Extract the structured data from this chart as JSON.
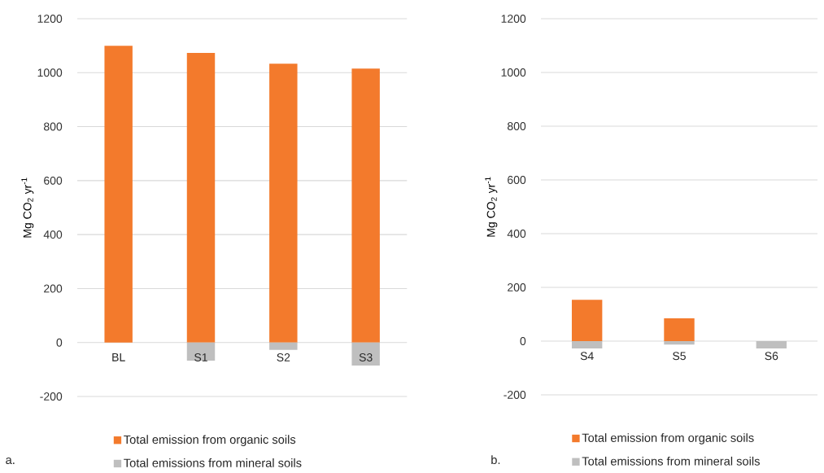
{
  "chart_data": [
    {
      "type": "bar",
      "stacked": true,
      "categories": [
        "BL",
        "S1",
        "S2",
        "S3"
      ],
      "ylabel": "Mg CO$_{2}$ yr$^{-1}$",
      "ylim": [
        -200,
        1200
      ],
      "yticks": [
        -200,
        0,
        200,
        400,
        600,
        800,
        1000,
        1200
      ],
      "grid": "y",
      "legend": "bottom",
      "annotations": [
        "a."
      ],
      "series": [
        {
          "name": "Total emission from organic soils",
          "color": "#f37a2c",
          "values": [
            1100,
            1073,
            1033,
            1015
          ]
        },
        {
          "name": "Total emissions from mineral soils",
          "color": "#bfbfbf",
          "values": [
            0,
            -67,
            -27,
            -85
          ]
        }
      ]
    },
    {
      "type": "bar",
      "stacked": true,
      "categories": [
        "S4",
        "S5",
        "S6"
      ],
      "ylabel": "Mg CO$_{2}$ yr$^{-1}$",
      "ylim": [
        -200,
        1200
      ],
      "yticks": [
        -200,
        0,
        200,
        400,
        600,
        800,
        1000,
        1200
      ],
      "grid": "y",
      "legend": "bottom",
      "annotations": [
        "b."
      ],
      "series": [
        {
          "name": "Total emission from organic soils",
          "color": "#f37a2c",
          "values": [
            154,
            85,
            0
          ]
        },
        {
          "name": "Total emissions from mineral soils",
          "color": "#bfbfbf",
          "values": [
            -27,
            -13,
            -27
          ]
        }
      ]
    }
  ]
}
